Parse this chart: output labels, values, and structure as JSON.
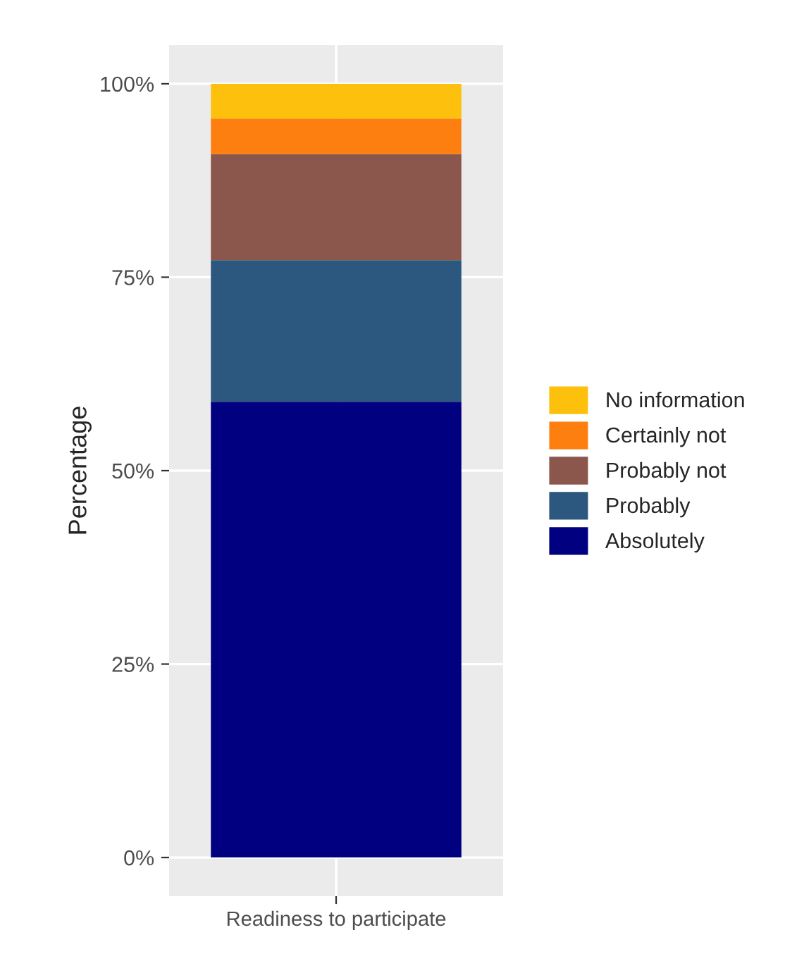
{
  "chart_data": {
    "type": "bar",
    "stacked": true,
    "ylabel": "Percentage",
    "categories": [
      "Readiness to participate"
    ],
    "series": [
      {
        "name": "Absolutely",
        "color": "#000080",
        "values": [
          58.9
        ]
      },
      {
        "name": "Probably",
        "color": "#2c577e",
        "values": [
          18.3
        ]
      },
      {
        "name": "Probably not",
        "color": "#8b574c",
        "values": [
          13.7
        ]
      },
      {
        "name": "Certainly not",
        "color": "#fd7f10",
        "values": [
          4.6
        ]
      },
      {
        "name": "No information",
        "color": "#fdc10d",
        "values": [
          4.5
        ]
      }
    ],
    "ylim": [
      -5,
      105
    ],
    "yticks": [
      {
        "value": 0,
        "label": "0%"
      },
      {
        "value": 25,
        "label": "25%"
      },
      {
        "value": 50,
        "label": "50%"
      },
      {
        "value": 75,
        "label": "75%"
      },
      {
        "value": 100,
        "label": "100%"
      }
    ],
    "grid": true,
    "legend": "right"
  }
}
